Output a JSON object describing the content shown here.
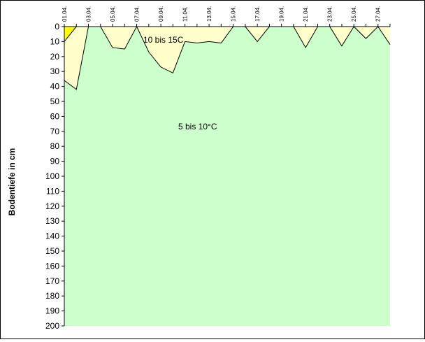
{
  "chart_data": {
    "type": "area",
    "ylabel": "Bodentiefe in cm",
    "y_axis": {
      "range": [
        0,
        200
      ],
      "inverted": true,
      "ticks": [
        0,
        10,
        20,
        30,
        40,
        50,
        60,
        70,
        80,
        90,
        100,
        110,
        120,
        130,
        140,
        150,
        160,
        170,
        180,
        190,
        200
      ]
    },
    "x_axis": {
      "range_days": [
        1,
        28
      ],
      "tick_labels": [
        {
          "day": 1,
          "label": "01.04."
        },
        {
          "day": 3,
          "label": "03.04."
        },
        {
          "day": 5,
          "label": "05.04."
        },
        {
          "day": 7,
          "label": "07.04."
        },
        {
          "day": 9,
          "label": "09.04."
        },
        {
          "day": 11,
          "label": "11.04."
        },
        {
          "day": 13,
          "label": "13.04."
        },
        {
          "day": 15,
          "label": "15.04."
        },
        {
          "day": 17,
          "label": "17.04."
        },
        {
          "day": 19,
          "label": "19.04."
        },
        {
          "day": 21,
          "label": "21.04."
        },
        {
          "day": 23,
          "label": "23.04."
        },
        {
          "day": 25,
          "label": "25.04."
        },
        {
          "day": 27,
          "label": "27.04."
        }
      ]
    },
    "zones": [
      {
        "label": "",
        "color": "#ffff00",
        "boundary": [
          [
            1,
            0
          ],
          [
            1,
            10
          ],
          [
            2,
            0
          ]
        ]
      },
      {
        "label": "10 bis 15C",
        "color": "#ffffcc",
        "boundary": [
          [
            1,
            10
          ],
          [
            1,
            36
          ],
          [
            2,
            42
          ],
          [
            3,
            0
          ],
          [
            4,
            0
          ],
          [
            5,
            14
          ],
          [
            6,
            15
          ],
          [
            7,
            0
          ],
          [
            8,
            17
          ],
          [
            9,
            27
          ],
          [
            10,
            31
          ],
          [
            11,
            10
          ],
          [
            12,
            11
          ],
          [
            13,
            10
          ],
          [
            14,
            11
          ],
          [
            15,
            0
          ],
          [
            16,
            0
          ],
          [
            17,
            10
          ],
          [
            18,
            0
          ],
          [
            19,
            0
          ],
          [
            20,
            0
          ],
          [
            21,
            14
          ],
          [
            22,
            0
          ],
          [
            23,
            0
          ],
          [
            24,
            13
          ],
          [
            25,
            0
          ],
          [
            26,
            8
          ],
          [
            27,
            0
          ],
          [
            28,
            12
          ]
        ]
      },
      {
        "label": "5 bis 10°C",
        "color": "#ccffcc"
      }
    ]
  }
}
